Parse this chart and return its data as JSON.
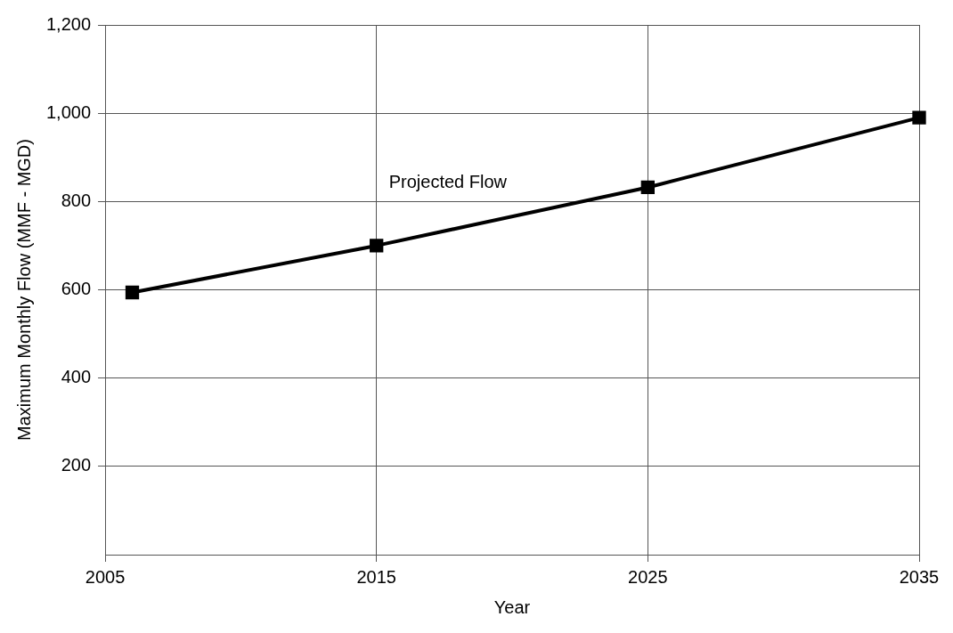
{
  "chart_data": {
    "type": "line",
    "xlabel": "Year",
    "ylabel": "Maximum Monthly Flow (MMF - MGD)",
    "x": [
      2006,
      2015,
      2025,
      2035
    ],
    "series": [
      {
        "name": "Projected Flow",
        "color": "#000000",
        "values": [
          594,
          700,
          832,
          990
        ]
      }
    ],
    "xlim": [
      2005,
      2035
    ],
    "xticks": [
      2005,
      2015,
      2025,
      2035
    ],
    "ylim": [
      0,
      1200
    ],
    "yticks": [
      200,
      400,
      600,
      800,
      {
        "value": 1000,
        "label": "1,000"
      },
      {
        "value": 1200,
        "label": "1,200"
      }
    ],
    "grid": true,
    "legend": false,
    "marker": "square",
    "line_style": "solid"
  }
}
